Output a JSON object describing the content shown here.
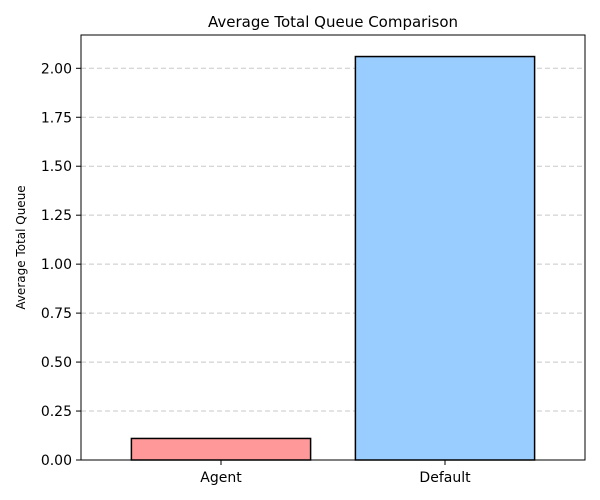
{
  "chart_data": {
    "type": "bar",
    "title": "Average Total Queue Comparison",
    "xlabel": "",
    "ylabel": "Average Total Queue",
    "categories": [
      "Agent",
      "Default"
    ],
    "values": [
      0.11,
      2.06
    ],
    "colors": [
      "#ff9999",
      "#99ccff"
    ],
    "edge_color": "#000000",
    "ylim": [
      0,
      2.17
    ],
    "yticks": [
      0.0,
      0.25,
      0.5,
      0.75,
      1.0,
      1.25,
      1.5,
      1.75,
      2.0
    ],
    "ytick_labels": [
      "0.00",
      "0.25",
      "0.50",
      "0.75",
      "1.00",
      "1.25",
      "1.50",
      "1.75",
      "2.00"
    ],
    "grid": "y-dashed",
    "legend": "none"
  }
}
